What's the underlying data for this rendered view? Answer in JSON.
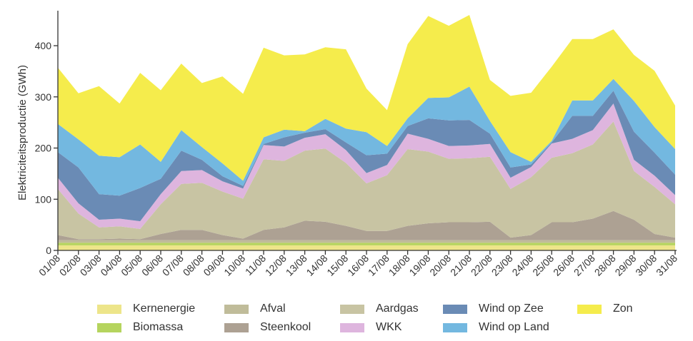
{
  "chart_data": {
    "type": "area",
    "stacked": true,
    "ylabel": "Elektriciteitsproductie (GWh)",
    "xlabel": "",
    "ylim": [
      0,
      460
    ],
    "yticks": [
      0,
      100,
      200,
      300,
      400
    ],
    "grid": false,
    "legend_position": "bottom",
    "categories": [
      "01/08",
      "02/08",
      "03/08",
      "04/08",
      "05/08",
      "06/08",
      "07/08",
      "08/08",
      "09/08",
      "10/08",
      "11/08",
      "12/08",
      "13/08",
      "14/08",
      "15/08",
      "16/08",
      "17/08",
      "18/08",
      "19/08",
      "20/08",
      "21/08",
      "22/08",
      "23/08",
      "24/08",
      "25/08",
      "26/08",
      "27/08",
      "28/08",
      "29/08",
      "30/08",
      "31/08"
    ],
    "series": [
      {
        "name": "Kernenergie",
        "color": "#ede58a",
        "values": [
          10,
          10,
          10,
          10,
          10,
          10,
          10,
          10,
          10,
          10,
          10,
          10,
          10,
          10,
          10,
          10,
          10,
          10,
          10,
          10,
          10,
          10,
          10,
          10,
          10,
          10,
          10,
          10,
          10,
          10,
          10
        ]
      },
      {
        "name": "Biomassa",
        "color": "#b5d45e",
        "values": [
          5,
          5,
          5,
          5,
          5,
          5,
          5,
          5,
          5,
          5,
          5,
          5,
          5,
          5,
          5,
          5,
          5,
          5,
          5,
          5,
          5,
          5,
          5,
          5,
          5,
          5,
          5,
          5,
          5,
          5,
          5
        ]
      },
      {
        "name": "Afval",
        "color": "#c0bc9a",
        "values": [
          5,
          5,
          5,
          5,
          5,
          5,
          5,
          5,
          5,
          5,
          5,
          5,
          5,
          5,
          5,
          5,
          5,
          5,
          5,
          5,
          5,
          5,
          5,
          5,
          5,
          5,
          5,
          5,
          5,
          5,
          5
        ]
      },
      {
        "name": "Steenkool",
        "color": "#ada193",
        "values": [
          10,
          2,
          2,
          3,
          2,
          12,
          20,
          20,
          10,
          3,
          20,
          25,
          38,
          36,
          28,
          18,
          18,
          28,
          33,
          35,
          35,
          36,
          5,
          10,
          35,
          35,
          42,
          57,
          40,
          12,
          5
        ]
      },
      {
        "name": "Aardgas",
        "color": "#c8c4a3",
        "values": [
          90,
          50,
          23,
          24,
          20,
          58,
          90,
          92,
          85,
          78,
          138,
          130,
          137,
          143,
          123,
          93,
          109,
          150,
          140,
          124,
          125,
          127,
          95,
          113,
          126,
          135,
          145,
          175,
          95,
          92,
          65
        ]
      },
      {
        "name": "WKK",
        "color": "#deb5de",
        "values": [
          22,
          20,
          15,
          15,
          15,
          20,
          25,
          25,
          20,
          20,
          28,
          28,
          25,
          28,
          25,
          20,
          20,
          30,
          25,
          25,
          25,
          25,
          22,
          20,
          28,
          28,
          28,
          35,
          22,
          22,
          18
        ]
      },
      {
        "name": "Wind op Zee",
        "color": "#6a8bb5",
        "values": [
          50,
          70,
          50,
          45,
          65,
          30,
          40,
          20,
          10,
          5,
          2,
          18,
          10,
          10,
          15,
          35,
          22,
          15,
          40,
          50,
          50,
          20,
          20,
          5,
          2,
          45,
          28,
          25,
          55,
          45,
          40
        ]
      },
      {
        "name": "Wind op Land",
        "color": "#73b8e0",
        "values": [
          55,
          55,
          75,
          75,
          85,
          33,
          40,
          25,
          25,
          10,
          13,
          15,
          3,
          20,
          27,
          45,
          15,
          15,
          40,
          45,
          65,
          25,
          30,
          5,
          3,
          30,
          30,
          23,
          60,
          50,
          50
        ]
      },
      {
        "name": "Zon",
        "color": "#f5ec4c",
        "values": [
          110,
          90,
          136,
          105,
          140,
          140,
          130,
          125,
          170,
          170,
          175,
          145,
          150,
          140,
          155,
          85,
          70,
          145,
          160,
          140,
          140,
          80,
          110,
          135,
          145,
          120,
          120,
          97,
          90,
          110,
          85
        ]
      }
    ]
  }
}
